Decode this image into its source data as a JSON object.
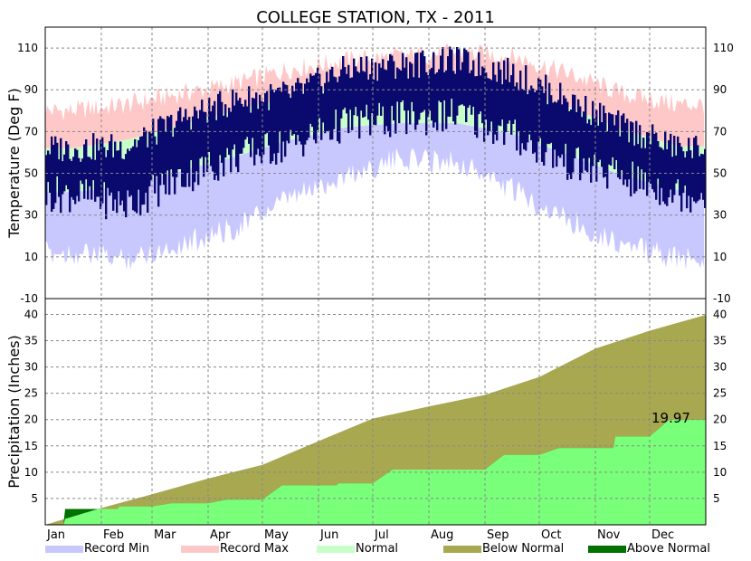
{
  "chart_data": {
    "title": "COLLEGE STATION, TX - 2011",
    "months": [
      "Jan",
      "Feb",
      "Mar",
      "Apr",
      "May",
      "Jun",
      "Jul",
      "Aug",
      "Sep",
      "Oct",
      "Nov",
      "Dec"
    ],
    "temperature": {
      "type": "area",
      "ylabel": "Temperature (Deg F)",
      "ylim": [
        -10,
        120
      ],
      "yticks": [
        -10,
        10,
        30,
        50,
        70,
        90,
        110
      ],
      "grid": true,
      "record_max_monthly": [
        80,
        83,
        88,
        93,
        100,
        104,
        106,
        108,
        106,
        98,
        88,
        83
      ],
      "normal_max_monthly": [
        62,
        66,
        73,
        80,
        87,
        93,
        96,
        97,
        91,
        82,
        71,
        63
      ],
      "normal_min_monthly": [
        41,
        44,
        51,
        58,
        66,
        72,
        74,
        74,
        69,
        59,
        49,
        42
      ],
      "record_min_monthly": [
        18,
        15,
        22,
        30,
        44,
        55,
        63,
        62,
        48,
        34,
        22,
        15
      ],
      "observed_high_monthly": [
        62,
        63,
        76,
        85,
        88,
        100,
        102,
        104,
        98,
        85,
        72,
        62
      ],
      "observed_low_monthly": [
        40,
        35,
        48,
        58,
        64,
        74,
        76,
        78,
        68,
        55,
        48,
        40
      ]
    },
    "precipitation": {
      "type": "area",
      "ylabel": "Precipitation (Inches)",
      "ylim": [
        0,
        43
      ],
      "yticks": [
        5,
        10,
        15,
        20,
        25,
        30,
        35,
        40
      ],
      "grid": true,
      "normal_cumulative_monthly_end": [
        3.2,
        5.8,
        8.8,
        11.4,
        15.9,
        20.2,
        22.5,
        24.7,
        28.1,
        33.5,
        36.9,
        39.9
      ],
      "observed_cumulative_monthly_end": [
        3.0,
        3.5,
        4.1,
        4.8,
        7.5,
        7.9,
        10.5,
        10.5,
        13.3,
        14.6,
        16.8,
        19.97
      ],
      "annotation": "19.97"
    },
    "legend": {
      "placement": "bottom",
      "items": [
        {
          "label": "Record Min",
          "color": "#c8c8ff"
        },
        {
          "label": "Record Max",
          "color": "#ffc8c8"
        },
        {
          "label": "Normal",
          "color": "#c8ffc8"
        },
        {
          "label": "Below Normal",
          "color": "#a8a850"
        },
        {
          "label": "Above Normal",
          "color": "#007000"
        }
      ]
    },
    "colors": {
      "observed_temp": "#0a0a6e",
      "observed_precip": "#7aff7a"
    }
  }
}
